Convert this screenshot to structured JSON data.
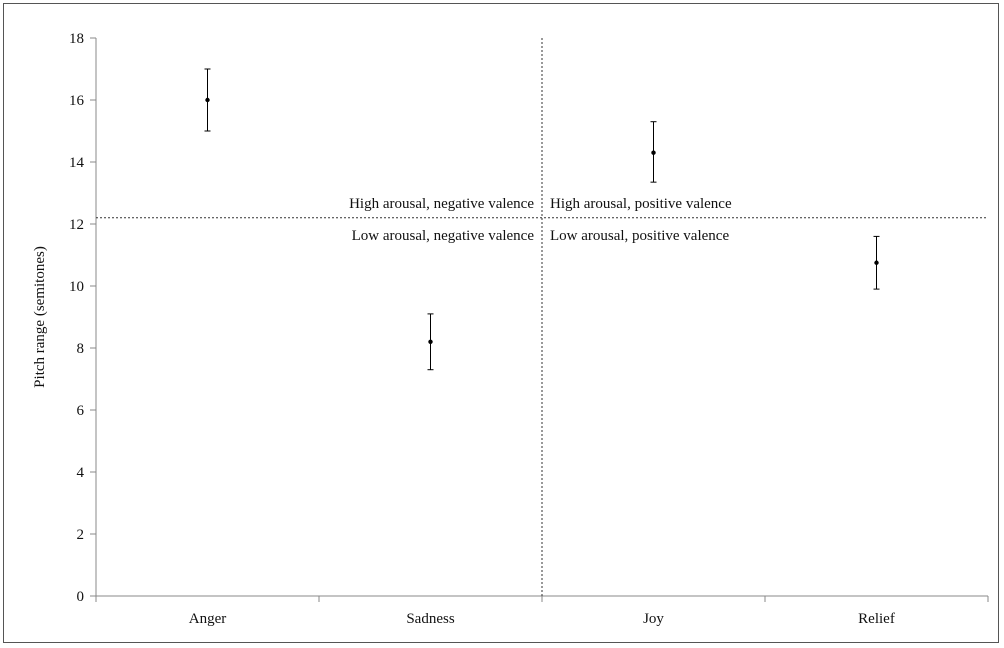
{
  "chart_data": {
    "type": "scatter",
    "categories": [
      "Anger",
      "Sadness",
      "Joy",
      "Relief"
    ],
    "series": [
      {
        "values": [
          16.0,
          8.2,
          14.3,
          10.75
        ],
        "error_low": [
          15.0,
          7.3,
          13.35,
          9.9
        ],
        "error_high": [
          17.0,
          9.1,
          15.3,
          11.6
        ]
      }
    ],
    "title": "",
    "xlabel": "",
    "ylabel": "Pitch range (semitones)",
    "ylim": [
      0,
      18
    ],
    "yticks": [
      0,
      2,
      4,
      6,
      8,
      10,
      12,
      14,
      16,
      18
    ],
    "grid": false,
    "reference_lines": {
      "horizontal_y": 12.2,
      "vertical_between": [
        "Sadness",
        "Joy"
      ]
    },
    "quadrant_labels": {
      "top_left": "High arousal, negative valence",
      "top_right": "High arousal, positive valence",
      "bottom_left": "Low arousal, negative valence",
      "bottom_right": "Low arousal, positive valence"
    },
    "colors": {
      "axis": "#888888",
      "marker": "#000000",
      "text": "#111111"
    }
  }
}
